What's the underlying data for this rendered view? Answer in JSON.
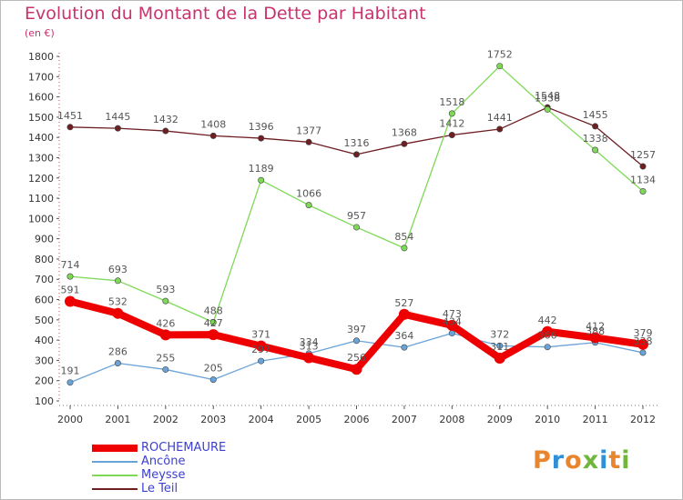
{
  "title": "Evolution du Montant de la Dette par Habitant",
  "unit": "(en €)",
  "brand": {
    "text": "Proxiti",
    "colors": [
      "#e8862f",
      "#2f8fd8",
      "#e8862f",
      "#6fb63a",
      "#2f8fd8",
      "#e8862f",
      "#6fb63a"
    ]
  },
  "chart_data": {
    "type": "line",
    "categories": [
      "2000",
      "2001",
      "2002",
      "2003",
      "2004",
      "2005",
      "2006",
      "2007",
      "2008",
      "2009",
      "2010",
      "2011",
      "2012"
    ],
    "yticks": [
      100,
      200,
      300,
      400,
      500,
      600,
      700,
      800,
      900,
      1000,
      1100,
      1200,
      1300,
      1400,
      1500,
      1600,
      1700,
      1800
    ],
    "ylim": [
      100,
      1800
    ],
    "grid": false,
    "legend_position": "bottom-left",
    "series": [
      {
        "name": "Le Teil",
        "color": "#6e1f24",
        "width": 1.3,
        "values": [
          1451,
          1445,
          1432,
          1408,
          1396,
          1377,
          1316,
          1368,
          1412,
          1441,
          1548,
          1455,
          1257
        ]
      },
      {
        "name": "Meysse",
        "color": "#7ed957",
        "width": 1.3,
        "values": [
          714,
          693,
          593,
          488,
          1189,
          1066,
          957,
          854,
          1518,
          1752,
          1538,
          1338,
          1134
        ]
      },
      {
        "name": "Ancône",
        "color": "#6aa3d8",
        "width": 1.3,
        "values": [
          191,
          286,
          255,
          205,
          297,
          334,
          397,
          364,
          434,
          372,
          366,
          388,
          338
        ]
      },
      {
        "name": "ROCHEMAURE",
        "color": "#ee0000",
        "width": 8,
        "values": [
          591,
          532,
          426,
          427,
          371,
          313,
          256,
          527,
          473,
          311,
          442,
          412,
          379
        ]
      }
    ]
  }
}
